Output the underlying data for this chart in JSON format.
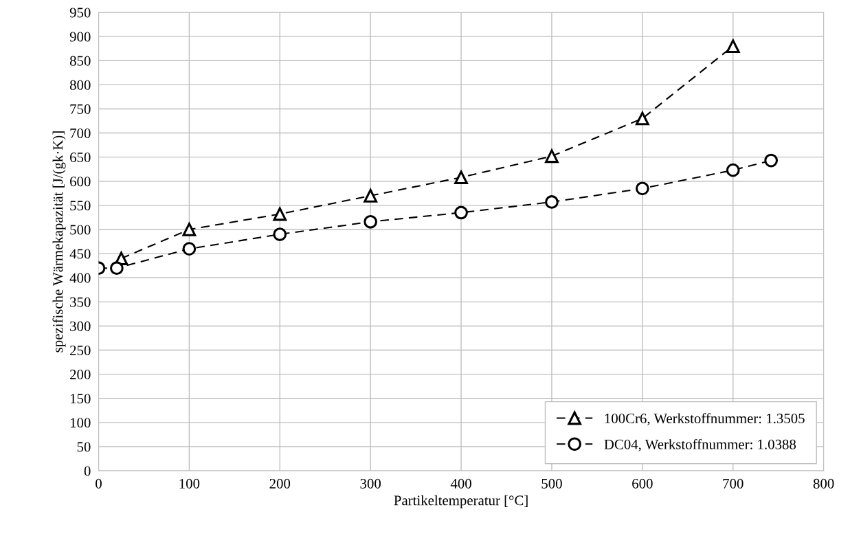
{
  "chart_data": {
    "type": "line",
    "xlabel": "Partikeltemperatur [°C]",
    "ylabel": "spezifische Wärmekapazität [J/(gk·K)]",
    "xlim": [
      0,
      800
    ],
    "xticks": [
      0,
      100,
      200,
      300,
      400,
      500,
      600,
      700,
      800
    ],
    "ylim": [
      0,
      950
    ],
    "yticks": [
      0,
      50,
      100,
      150,
      200,
      250,
      300,
      350,
      400,
      450,
      500,
      550,
      600,
      650,
      700,
      750,
      800,
      850,
      900,
      950
    ],
    "grid": true,
    "legend": "bottom right",
    "line_style": "dashed",
    "series": [
      {
        "name": "100Cr6, Werkstoffnummer: 1.3505",
        "color": "#000000",
        "marker": "triangle",
        "x": [
          25,
          100,
          200,
          300,
          400,
          500,
          600,
          700
        ],
        "values": [
          440,
          500,
          532,
          570,
          608,
          652,
          730,
          880
        ]
      },
      {
        "name": "DC04, Werkstoffnummer: 1.0388",
        "color": "#000000",
        "marker": "circle",
        "x": [
          0,
          20,
          100,
          200,
          300,
          400,
          500,
          600,
          700,
          742
        ],
        "values": [
          420,
          420,
          460,
          490,
          516,
          535,
          557,
          585,
          623,
          643
        ]
      }
    ]
  }
}
